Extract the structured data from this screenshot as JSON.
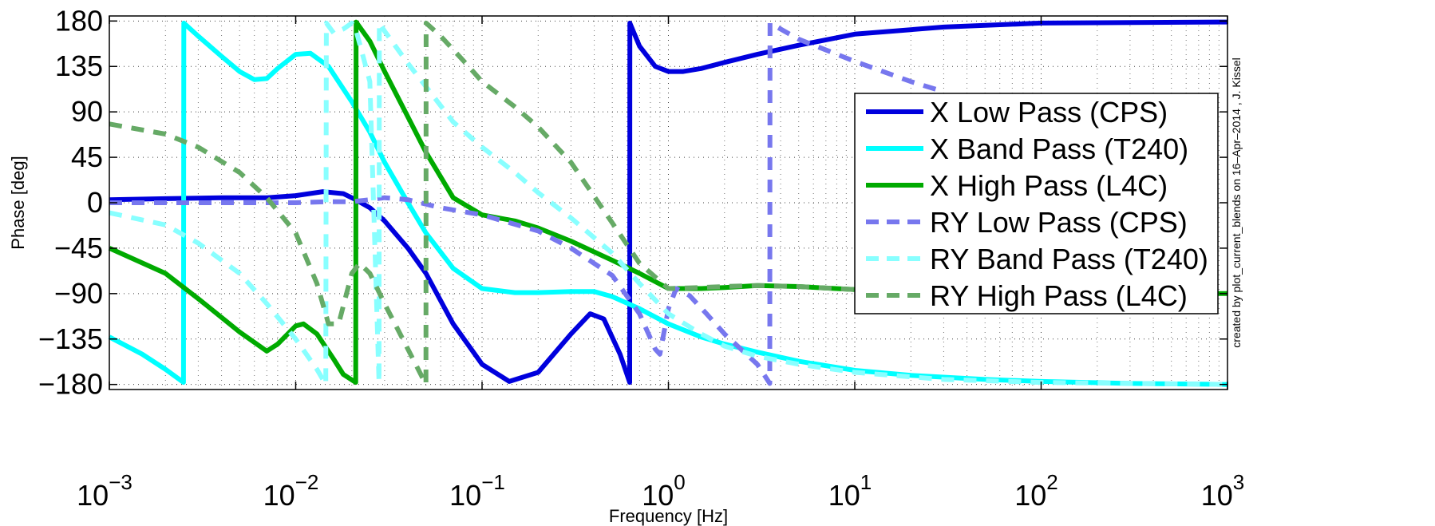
{
  "chart_data": {
    "type": "line",
    "title": "",
    "xlabel": "Frequency [Hz]",
    "ylabel": "Phase [deg]",
    "xscale": "log",
    "xlim": [
      0.001,
      1000
    ],
    "ylim": [
      -185,
      185
    ],
    "x_ticks": [
      {
        "value": 0.001,
        "base": "10",
        "exp": "−3"
      },
      {
        "value": 0.01,
        "base": "10",
        "exp": "−2"
      },
      {
        "value": 0.1,
        "base": "10",
        "exp": "−1"
      },
      {
        "value": 1,
        "base": "10",
        "exp": "0"
      },
      {
        "value": 10,
        "base": "10",
        "exp": "1"
      },
      {
        "value": 100,
        "base": "10",
        "exp": "2"
      },
      {
        "value": 1000,
        "base": "10",
        "exp": "3"
      }
    ],
    "y_ticks": [
      {
        "value": 180,
        "label": "180"
      },
      {
        "value": 135,
        "label": "135"
      },
      {
        "value": 90,
        "label": "90"
      },
      {
        "value": 45,
        "label": "45"
      },
      {
        "value": 0,
        "label": "0"
      },
      {
        "value": -45,
        "label": "−45"
      },
      {
        "value": -90,
        "label": "−90"
      },
      {
        "value": -135,
        "label": "−135"
      },
      {
        "value": -180,
        "label": "−180"
      }
    ],
    "grid": true,
    "legend_position": "right",
    "annotation": "created by plot_current_blends on 16–Apr–2014 , J. Kissel",
    "series": [
      {
        "name": "X Low Pass (CPS)",
        "color": "#0000dd",
        "style": "solid",
        "points": [
          [
            0.001,
            3
          ],
          [
            0.002,
            4
          ],
          [
            0.004,
            5
          ],
          [
            0.007,
            5
          ],
          [
            0.01,
            7
          ],
          [
            0.014,
            11
          ],
          [
            0.018,
            9
          ],
          [
            0.021,
            3
          ],
          [
            0.025,
            -5
          ],
          [
            0.03,
            -18
          ],
          [
            0.04,
            -45
          ],
          [
            0.05,
            -70
          ],
          [
            0.07,
            -120
          ],
          [
            0.1,
            -160
          ],
          [
            0.14,
            -177
          ],
          [
            0.2,
            -168
          ],
          [
            0.3,
            -130
          ],
          [
            0.38,
            -110
          ],
          [
            0.45,
            -115
          ],
          [
            0.55,
            -150
          ],
          [
            0.62,
            -178
          ],
          [
            0.621,
            178
          ],
          [
            0.7,
            155
          ],
          [
            0.85,
            135
          ],
          [
            1.0,
            130
          ],
          [
            1.2,
            130
          ],
          [
            1.5,
            133
          ],
          [
            2,
            139
          ],
          [
            3,
            147
          ],
          [
            5,
            156
          ],
          [
            10,
            167
          ],
          [
            30,
            174
          ],
          [
            100,
            178
          ],
          [
            1000,
            179
          ]
        ]
      },
      {
        "name": "X Band Pass (T240)",
        "color": "#00ffff",
        "style": "solid",
        "points": [
          [
            0.001,
            -133
          ],
          [
            0.0015,
            -150
          ],
          [
            0.002,
            -165
          ],
          [
            0.0025,
            -178
          ],
          [
            0.00251,
            178
          ],
          [
            0.003,
            165
          ],
          [
            0.004,
            145
          ],
          [
            0.005,
            130
          ],
          [
            0.006,
            122
          ],
          [
            0.007,
            123
          ],
          [
            0.008,
            133
          ],
          [
            0.01,
            147
          ],
          [
            0.012,
            148
          ],
          [
            0.015,
            135
          ],
          [
            0.02,
            100
          ],
          [
            0.025,
            70
          ],
          [
            0.03,
            40
          ],
          [
            0.04,
            0
          ],
          [
            0.05,
            -30
          ],
          [
            0.07,
            -65
          ],
          [
            0.1,
            -85
          ],
          [
            0.15,
            -89
          ],
          [
            0.2,
            -89
          ],
          [
            0.3,
            -88
          ],
          [
            0.4,
            -88
          ],
          [
            0.5,
            -93
          ],
          [
            0.7,
            -105
          ],
          [
            1.0,
            -120
          ],
          [
            1.5,
            -133
          ],
          [
            2,
            -140
          ],
          [
            3,
            -148
          ],
          [
            5,
            -157
          ],
          [
            10,
            -166
          ],
          [
            20,
            -171
          ],
          [
            50,
            -175
          ],
          [
            100,
            -177
          ],
          [
            300,
            -179
          ],
          [
            1000,
            -180
          ]
        ]
      },
      {
        "name": "X High Pass (L4C)",
        "color": "#00aa00",
        "style": "solid",
        "points": [
          [
            0.001,
            -45
          ],
          [
            0.002,
            -70
          ],
          [
            0.003,
            -95
          ],
          [
            0.005,
            -128
          ],
          [
            0.007,
            -147
          ],
          [
            0.008,
            -140
          ],
          [
            0.01,
            -122
          ],
          [
            0.011,
            -120
          ],
          [
            0.013,
            -130
          ],
          [
            0.016,
            -155
          ],
          [
            0.018,
            -170
          ],
          [
            0.021,
            -178
          ],
          [
            0.0211,
            179
          ],
          [
            0.025,
            160
          ],
          [
            0.03,
            130
          ],
          [
            0.04,
            85
          ],
          [
            0.05,
            50
          ],
          [
            0.07,
            5
          ],
          [
            0.1,
            -12
          ],
          [
            0.15,
            -18
          ],
          [
            0.2,
            -25
          ],
          [
            0.3,
            -38
          ],
          [
            0.5,
            -57
          ],
          [
            0.7,
            -70
          ],
          [
            1.0,
            -85
          ],
          [
            1.5,
            -85
          ],
          [
            2,
            -84
          ],
          [
            3,
            -82
          ],
          [
            5,
            -83
          ],
          [
            10,
            -86
          ],
          [
            20,
            -88
          ],
          [
            50,
            -89
          ],
          [
            100,
            -90
          ],
          [
            1000,
            -90
          ]
        ]
      },
      {
        "name": "RY Low Pass (CPS)",
        "color": "#7777ee",
        "style": "dashed",
        "points": [
          [
            0.001,
            0
          ],
          [
            0.005,
            0
          ],
          [
            0.01,
            0
          ],
          [
            0.015,
            1
          ],
          [
            0.02,
            1
          ],
          [
            0.025,
            3
          ],
          [
            0.03,
            5
          ],
          [
            0.04,
            3
          ],
          [
            0.06,
            -5
          ],
          [
            0.1,
            -12
          ],
          [
            0.2,
            -28
          ],
          [
            0.3,
            -45
          ],
          [
            0.5,
            -72
          ],
          [
            0.7,
            -110
          ],
          [
            0.85,
            -145
          ],
          [
            0.9,
            -150
          ],
          [
            1.0,
            -105
          ],
          [
            1.1,
            -85
          ],
          [
            1.3,
            -92
          ],
          [
            1.6,
            -110
          ],
          [
            2,
            -130
          ],
          [
            3,
            -160
          ],
          [
            3.5,
            -179
          ],
          [
            3.51,
            178
          ],
          [
            5,
            162
          ],
          [
            10,
            140
          ],
          [
            20,
            120
          ],
          [
            30,
            110
          ]
        ]
      },
      {
        "name": "RY Band Pass (T240)",
        "color": "#88ffff",
        "style": "dashed",
        "points": [
          [
            0.001,
            -10
          ],
          [
            0.002,
            -22
          ],
          [
            0.003,
            -40
          ],
          [
            0.005,
            -70
          ],
          [
            0.007,
            -100
          ],
          [
            0.01,
            -135
          ],
          [
            0.013,
            -165
          ],
          [
            0.0145,
            -180
          ],
          [
            0.0146,
            178
          ],
          [
            0.016,
            168
          ],
          [
            0.018,
            172
          ],
          [
            0.02,
            178
          ],
          [
            0.021,
            172
          ],
          [
            0.025,
            120
          ],
          [
            0.028,
            -178
          ],
          [
            0.0281,
            178
          ],
          [
            0.03,
            170
          ],
          [
            0.04,
            138
          ],
          [
            0.05,
            115
          ],
          [
            0.07,
            80
          ],
          [
            0.1,
            55
          ],
          [
            0.15,
            30
          ],
          [
            0.2,
            10
          ],
          [
            0.3,
            -15
          ],
          [
            0.5,
            -50
          ],
          [
            0.7,
            -80
          ],
          [
            1.0,
            -110
          ],
          [
            1.5,
            -130
          ],
          [
            2,
            -142
          ],
          [
            3,
            -152
          ],
          [
            5,
            -160
          ],
          [
            10,
            -168
          ],
          [
            30,
            -175
          ],
          [
            100,
            -178
          ],
          [
            1000,
            -180
          ]
        ]
      },
      {
        "name": "RY High Pass (L4C)",
        "color": "#66aa66",
        "style": "dashed",
        "points": [
          [
            0.001,
            78
          ],
          [
            0.002,
            68
          ],
          [
            0.003,
            55
          ],
          [
            0.005,
            30
          ],
          [
            0.007,
            5
          ],
          [
            0.01,
            -30
          ],
          [
            0.013,
            -80
          ],
          [
            0.015,
            -120
          ],
          [
            0.017,
            -120
          ],
          [
            0.02,
            -70
          ],
          [
            0.022,
            -60
          ],
          [
            0.025,
            -70
          ],
          [
            0.03,
            -100
          ],
          [
            0.04,
            -145
          ],
          [
            0.05,
            -180
          ],
          [
            0.0501,
            178
          ],
          [
            0.06,
            165
          ],
          [
            0.08,
            140
          ],
          [
            0.1,
            120
          ],
          [
            0.15,
            95
          ],
          [
            0.2,
            75
          ],
          [
            0.3,
            40
          ],
          [
            0.5,
            -20
          ],
          [
            0.7,
            -60
          ],
          [
            1.0,
            -85
          ],
          [
            1.5,
            -84
          ],
          [
            2,
            -83
          ],
          [
            3,
            -82
          ],
          [
            5,
            -83
          ],
          [
            10,
            -86
          ],
          [
            20,
            -88
          ]
        ]
      }
    ]
  }
}
